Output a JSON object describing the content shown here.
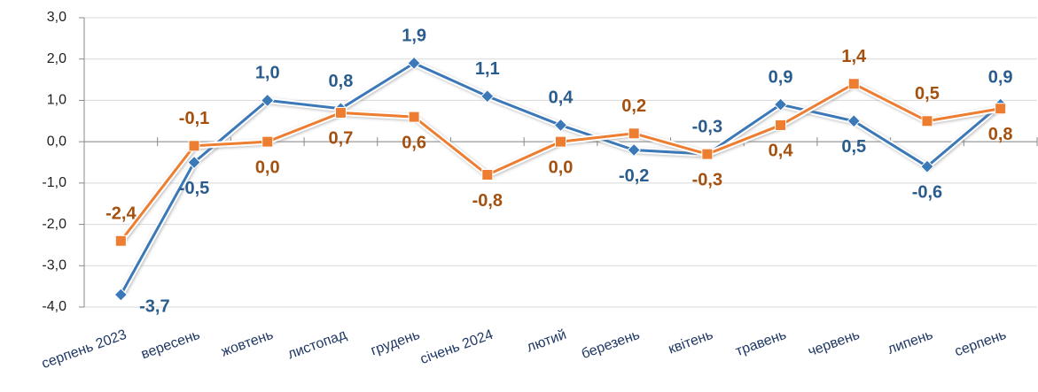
{
  "chart_data": {
    "type": "line",
    "categories": [
      "серпень 2023",
      "вересень",
      "жовтень",
      "листопад",
      "грудень",
      "січень 2024",
      "лютий",
      "березень",
      "квітень",
      "травень",
      "червень",
      "липень",
      "серпень"
    ],
    "series": [
      {
        "color": "#3a78b8",
        "label_color": "#2a5c8e",
        "marker": "diamond",
        "values": [
          -3.7,
          -0.5,
          1.0,
          0.8,
          1.9,
          1.1,
          0.4,
          -0.2,
          -0.3,
          0.9,
          0.5,
          -0.6,
          0.9
        ],
        "value_labels": [
          "-3,7",
          "-0,5",
          "1,0",
          "0,8",
          "1,9",
          "1,1",
          "0,4",
          "-0,2",
          "-0,3",
          "0,9",
          "0,5",
          "-0,6",
          "0,9"
        ]
      },
      {
        "color": "#ed7d31",
        "label_color": "#a4500f",
        "marker": "square",
        "values": [
          -2.4,
          -0.1,
          0.0,
          0.7,
          0.6,
          -0.8,
          0.0,
          0.2,
          -0.3,
          0.4,
          1.4,
          0.5,
          0.8
        ],
        "value_labels": [
          "-2,4",
          "-0,1",
          "0,0",
          "0,7",
          "0,6",
          "-0,8",
          "0,0",
          "0,2",
          "-0,3",
          "0,4",
          "1,4",
          "0,5",
          "0,8"
        ]
      }
    ],
    "ylim": [
      -4,
      3
    ],
    "yticks": [
      {
        "value": -4,
        "label": "-4,0"
      },
      {
        "value": -3,
        "label": "-3,0"
      },
      {
        "value": -2,
        "label": "-2,0"
      },
      {
        "value": -1,
        "label": "-1,0"
      },
      {
        "value": 0,
        "label": "0,0"
      },
      {
        "value": 1,
        "label": "1,0"
      },
      {
        "value": 2,
        "label": "2,0"
      },
      {
        "value": 3,
        "label": "3,0"
      }
    ],
    "grid": true
  }
}
